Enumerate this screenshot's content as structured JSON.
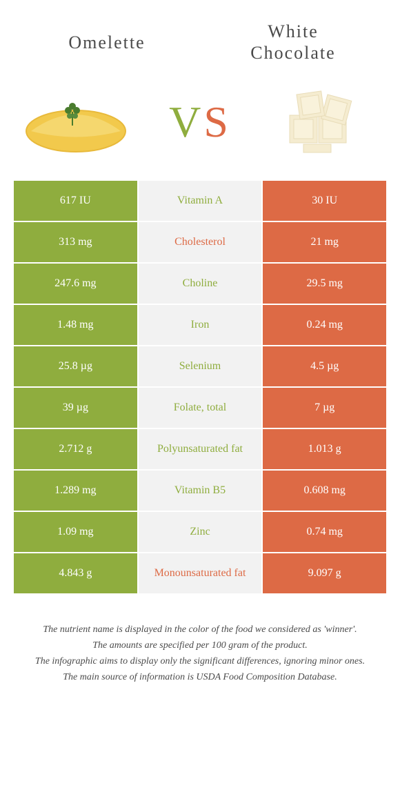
{
  "header": {
    "left_title": "Omelette",
    "right_title_line1": "White",
    "right_title_line2": "Chocolate",
    "vs_v": "V",
    "vs_s": "S"
  },
  "colors": {
    "green": "#8fad3e",
    "orange": "#dd6a45",
    "mid_bg": "#f2f2f2",
    "text": "#4a4a4a",
    "white": "#ffffff",
    "omelette_fill": "#f2c94c",
    "omelette_edge": "#e8b93a",
    "parsley": "#4a7c2e",
    "choc_light": "#f5ecd0",
    "choc_dark": "#e8dcb8"
  },
  "rows": [
    {
      "left": "617 IU",
      "label": "Vitamin A",
      "right": "30 IU",
      "winner": "green"
    },
    {
      "left": "313 mg",
      "label": "Cholesterol",
      "right": "21 mg",
      "winner": "orange"
    },
    {
      "left": "247.6 mg",
      "label": "Choline",
      "right": "29.5 mg",
      "winner": "green"
    },
    {
      "left": "1.48 mg",
      "label": "Iron",
      "right": "0.24 mg",
      "winner": "green"
    },
    {
      "left": "25.8 µg",
      "label": "Selenium",
      "right": "4.5 µg",
      "winner": "green"
    },
    {
      "left": "39 µg",
      "label": "Folate, total",
      "right": "7 µg",
      "winner": "green"
    },
    {
      "left": "2.712 g",
      "label": "Polyunsaturated fat",
      "right": "1.013 g",
      "winner": "green"
    },
    {
      "left": "1.289 mg",
      "label": "Vitamin B5",
      "right": "0.608 mg",
      "winner": "green"
    },
    {
      "left": "1.09 mg",
      "label": "Zinc",
      "right": "0.74 mg",
      "winner": "green"
    },
    {
      "left": "4.843 g",
      "label": "Monounsaturated fat",
      "right": "9.097 g",
      "winner": "orange"
    }
  ],
  "footer": {
    "line1": "The nutrient name is displayed in the color of the food we considered as 'winner'.",
    "line2": "The amounts are specified per 100 gram of the product.",
    "line3": "The infographic aims to display only the significant differences, ignoring minor ones.",
    "line4": "The main source of information is USDA Food Composition Database."
  }
}
